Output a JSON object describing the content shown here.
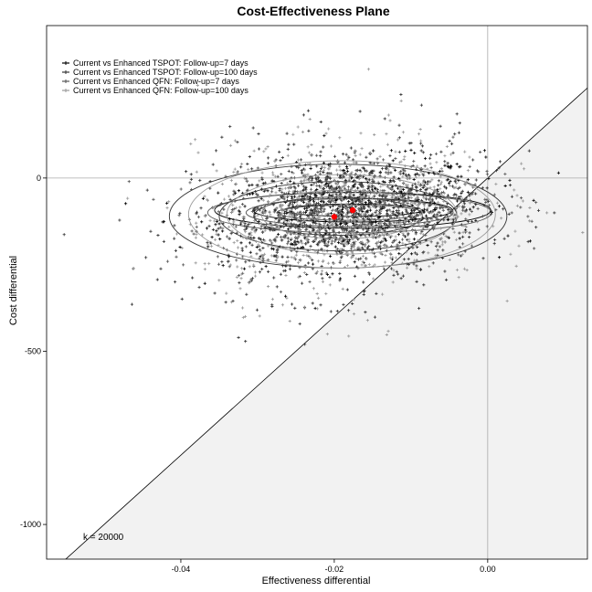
{
  "chart_data": {
    "type": "scatter",
    "title": "Cost-Effectiveness Plane",
    "xlabel": "Effectiveness differential",
    "ylabel": "Cost differential",
    "xlim": [
      -0.0575,
      0.013
    ],
    "ylim": [
      -1100,
      440
    ],
    "xticks": [
      -0.04,
      -0.02,
      0.0
    ],
    "xtick_labels": [
      "-0.04",
      "-0.02",
      "0.00"
    ],
    "yticks": [
      0,
      -500,
      -1000
    ],
    "ytick_labels": [
      "0",
      "-500",
      "-1000"
    ],
    "grid": false,
    "reference_lines": {
      "x": 0,
      "y": 0
    },
    "wtp_line": {
      "label": "k = 20000",
      "k": 20000,
      "shaded_region": "below-right",
      "shade_color": "#f2f2f2"
    },
    "legend_position": "top-left",
    "series": [
      {
        "name": "Current vs Enhanced TSPOT: Follow-up=7 days",
        "color": "#000000",
        "marker": "+",
        "mean": [
          -0.0176,
          -93
        ],
        "spread": [
          0.0085,
          68
        ],
        "n_points": 700,
        "ellipses": [
          [
            0.009,
            18
          ],
          [
            0.013,
            34
          ],
          [
            0.018,
            52
          ]
        ]
      },
      {
        "name": "Current vs Enhanced TSPOT: Follow-up=100 days",
        "color": "#333333",
        "marker": "+",
        "mean": [
          -0.0195,
          -110
        ],
        "spread": [
          0.0095,
          115
        ],
        "n_points": 700,
        "ellipses": [
          [
            0.011,
            55
          ],
          [
            0.0155,
            100
          ],
          [
            0.022,
            150
          ]
        ]
      },
      {
        "name": "Current vs Enhanced QFN: Follow-up=7 days",
        "color": "#555555",
        "marker": "+",
        "mean": [
          -0.018,
          -100
        ],
        "spread": [
          0.0085,
          70
        ],
        "n_points": 700,
        "ellipses": [
          [
            0.0095,
            22
          ],
          [
            0.0135,
            40
          ],
          [
            0.0185,
            58
          ]
        ]
      },
      {
        "name": "Current vs Enhanced QFN: Follow-up=100 days",
        "color": "#999999",
        "marker": "+",
        "mean": [
          -0.019,
          -105
        ],
        "spread": [
          0.0095,
          115
        ],
        "n_points": 700,
        "ellipses": [
          [
            0.0105,
            70
          ],
          [
            0.015,
            115
          ],
          [
            0.02,
            155
          ]
        ]
      }
    ],
    "mean_points": [
      [
        -0.0176,
        -93
      ],
      [
        -0.02,
        -112
      ]
    ],
    "mean_color": "#ff0000"
  }
}
